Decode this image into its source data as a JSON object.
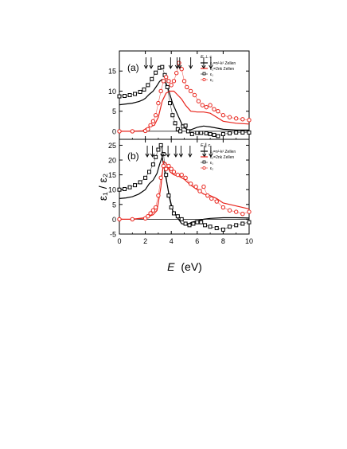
{
  "figure": {
    "x_axis_label_main": "E",
    "x_axis_label_unit": "(eV)",
    "y_axis_label": "ε₁ / ε₂",
    "colors": {
      "black": "#000000",
      "red": "#e8231b"
    }
  },
  "chart_data": [
    {
      "type": "line",
      "panel_label": "(a)",
      "field_label": "E ⊥ c",
      "xlim": [
        0,
        10
      ],
      "ylim": [
        -2,
        20
      ],
      "x_ticks": [
        0,
        2,
        4,
        6,
        8,
        10
      ],
      "y_ticks": [
        0,
        5,
        10,
        15
      ],
      "x_tick_labels": [
        "",
        "",
        "",
        "",
        "",
        ""
      ],
      "y_tick_labels": [
        "0",
        "5",
        "10",
        "15"
      ],
      "grid": false,
      "legend_position": "top-right",
      "series": [
        {
          "name": "ε₁=n²-k² Zellen",
          "color": "#000000",
          "style": "line",
          "x": [
            0,
            0.5,
            1,
            1.5,
            1.8,
            2,
            2.3,
            2.6,
            2.9,
            3.1,
            3.3,
            3.5,
            3.8,
            4.1,
            4.5,
            4.9,
            5.3,
            5.6,
            6,
            6.5,
            7,
            7.5,
            8,
            9,
            10
          ],
          "y": [
            6.6,
            6.8,
            7,
            7.4,
            7.8,
            8.2,
            9.2,
            10,
            11.4,
            12.4,
            12.9,
            12.4,
            10.2,
            7,
            4,
            1.2,
            0.2,
            0.5,
            1,
            1.3,
            1.1,
            0.8,
            0.5,
            0.3,
            0.3
          ]
        },
        {
          "name": "ε₂=2nk Zellen",
          "color": "#e8231b",
          "style": "line",
          "x": [
            0,
            1,
            1.8,
            2.1,
            2.4,
            2.7,
            3,
            3.3,
            3.6,
            3.9,
            4.2,
            4.5,
            4.8,
            5.1,
            5.5,
            6,
            6.5,
            7,
            7.5,
            8,
            9,
            10
          ],
          "y": [
            0,
            0,
            0.1,
            0.8,
            1.2,
            1.5,
            3.5,
            7.5,
            9.5,
            10,
            10,
            9,
            8,
            6.5,
            5,
            4.8,
            4.8,
            4.5,
            3.5,
            2.5,
            2,
            1.8
          ]
        },
        {
          "name": "ε₁",
          "color": "#000000",
          "style": "markers",
          "x": [
            0,
            0.4,
            0.8,
            1.2,
            1.6,
            1.9,
            2.2,
            2.5,
            2.8,
            3.1,
            3.3,
            3.5,
            3.7,
            3.9,
            4.1,
            4.3,
            4.5,
            4.7,
            4.9,
            5.1,
            5.3,
            5.6,
            6,
            6.3,
            6.7,
            7,
            7.3,
            7.6,
            8,
            8.5,
            9,
            9.5,
            10
          ],
          "y": [
            8.7,
            8.8,
            9,
            9.3,
            9.8,
            10.4,
            11.5,
            13,
            14.6,
            15.8,
            16,
            14,
            11,
            7,
            4,
            2,
            0.5,
            0,
            1.2,
            1.4,
            0,
            -0.7,
            -0.4,
            -0.4,
            -0.5,
            -0.7,
            -0.9,
            -1.2,
            -0.7,
            -0.5,
            -0.3,
            -0.3,
            -0.3
          ]
        },
        {
          "name": "ε₂",
          "color": "#e8231b",
          "style": "markers",
          "x": [
            0,
            1,
            2,
            2.2,
            2.4,
            2.6,
            2.8,
            3,
            3.2,
            3.4,
            3.6,
            3.8,
            4,
            4.2,
            4.4,
            4.6,
            4.8,
            5,
            5.2,
            5.5,
            5.8,
            6.1,
            6.4,
            6.7,
            7,
            7.3,
            7.6,
            8,
            8.5,
            9,
            9.5,
            10
          ],
          "y": [
            0,
            0,
            0.1,
            0.5,
            1.5,
            2.5,
            4,
            7,
            10,
            12.5,
            13.5,
            12.5,
            11.5,
            12.5,
            14.5,
            17,
            15.5,
            12.5,
            11,
            10,
            9,
            7.5,
            6.5,
            6,
            6.5,
            5.5,
            5,
            4,
            3.5,
            3.2,
            3,
            2.8
          ]
        }
      ],
      "arrow_x": [
        2.05,
        2.45,
        4.45,
        3.95,
        4.65,
        5.5,
        6.5,
        7.05
      ]
    },
    {
      "type": "line",
      "panel_label": "(b)",
      "field_label": "E ∥ c",
      "xlim": [
        0,
        10
      ],
      "ylim": [
        -5,
        27
      ],
      "x_ticks": [
        0,
        2,
        4,
        6,
        8,
        10
      ],
      "y_ticks": [
        -5,
        0,
        5,
        10,
        15,
        20,
        25
      ],
      "x_tick_labels": [
        "0",
        "2",
        "4",
        "6",
        "8",
        "10"
      ],
      "y_tick_labels": [
        "-5",
        "0",
        "5",
        "10",
        "15",
        "20",
        "25"
      ],
      "grid": false,
      "legend_position": "top-right",
      "series": [
        {
          "name": "ε₁=n²-k² Zellen",
          "color": "#000000",
          "style": "line",
          "x": [
            0,
            0.5,
            1,
            1.5,
            2,
            2.3,
            2.6,
            2.9,
            3.1,
            3.3,
            3.5,
            3.8,
            4.1,
            4.4,
            4.8,
            5.2,
            5.6,
            6,
            6.5,
            7,
            8,
            9,
            10
          ],
          "y": [
            7,
            7.2,
            7.6,
            8.5,
            10,
            12,
            13.2,
            15.5,
            18.5,
            21,
            16,
            9,
            3,
            1,
            -1.5,
            -1.8,
            -1,
            -0.5,
            0,
            0.3,
            0.5,
            0.5,
            0.4
          ]
        },
        {
          "name": "ε₂=2nk Zellen",
          "color": "#e8231b",
          "style": "line",
          "x": [
            0,
            1,
            2,
            2.3,
            2.6,
            2.9,
            3.2,
            3.4,
            3.6,
            3.9,
            4.2,
            4.6,
            5,
            5.5,
            6,
            6.5,
            7,
            7.5,
            8,
            9,
            10
          ],
          "y": [
            0,
            0,
            0.5,
            1,
            1.5,
            3,
            11,
            19.5,
            19,
            16,
            15,
            14.5,
            13.5,
            11.5,
            10,
            8.5,
            8,
            7,
            5.5,
            4.5,
            3.5
          ]
        },
        {
          "name": "ε₁",
          "color": "#000000",
          "style": "markers",
          "x": [
            0,
            0.4,
            0.8,
            1.2,
            1.6,
            2,
            2.3,
            2.6,
            2.8,
            3,
            3.2,
            3.4,
            3.6,
            3.8,
            4,
            4.2,
            4.5,
            4.8,
            5.1,
            5.4,
            5.7,
            6,
            6.3,
            6.6,
            7,
            7.5,
            8,
            8.5,
            9,
            9.5,
            10
          ],
          "y": [
            10,
            10.2,
            10.8,
            11.5,
            12.5,
            14,
            16,
            18.5,
            21,
            23.5,
            25,
            22,
            15,
            8,
            4,
            2,
            1,
            0,
            -1.5,
            -2,
            -1.5,
            -1,
            -1,
            -2,
            -2.5,
            -3,
            -3.5,
            -2.5,
            -2,
            -1.5,
            -1
          ]
        },
        {
          "name": "ε₂",
          "color": "#e8231b",
          "style": "markers",
          "x": [
            0,
            1,
            2,
            2.2,
            2.4,
            2.6,
            2.8,
            3,
            3.2,
            3.4,
            3.6,
            3.8,
            4,
            4.2,
            4.5,
            4.8,
            5.1,
            5.5,
            5.9,
            6.2,
            6.5,
            6.8,
            7.1,
            7.5,
            8,
            8.5,
            9,
            9.5,
            10
          ],
          "y": [
            0,
            0,
            0.3,
            1,
            2,
            3,
            4,
            8,
            14,
            18,
            17,
            18,
            17,
            16,
            15,
            15,
            14,
            12,
            11,
            9.5,
            11,
            8,
            7,
            6,
            4,
            3,
            2.5,
            1.8,
            2.5
          ]
        }
      ],
      "arrow_x": [
        2.15,
        2.55,
        3.3,
        3.75,
        4.35,
        4.75,
        5.45,
        6.55,
        7.05
      ]
    }
  ]
}
